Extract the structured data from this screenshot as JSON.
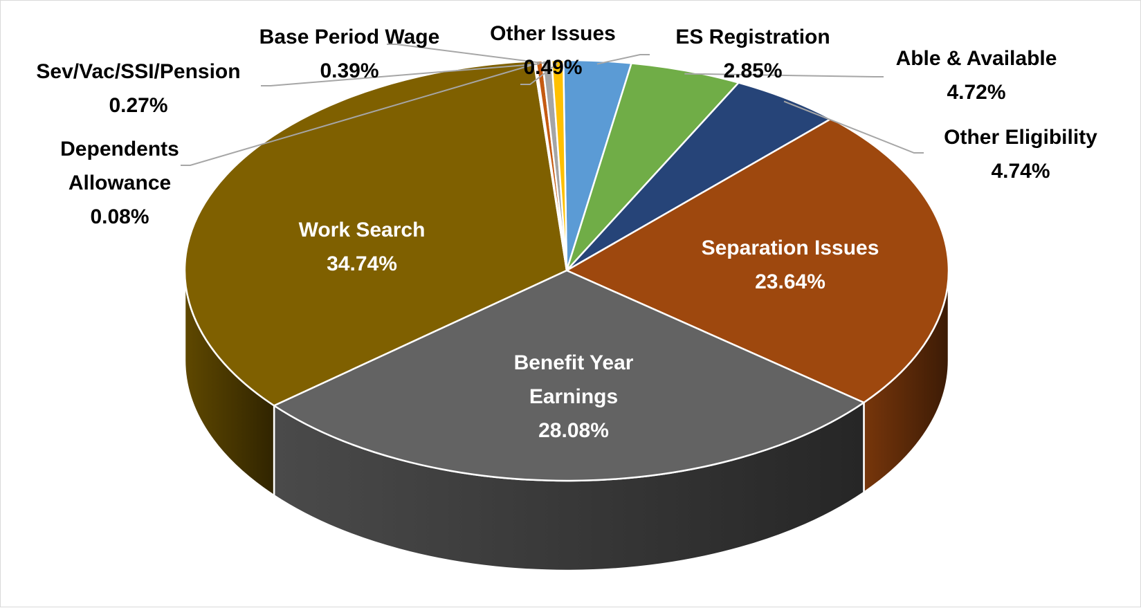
{
  "chart_data": {
    "type": "pie",
    "title": "",
    "slices": [
      {
        "label": [
          "ES Registration"
        ],
        "value": 2.85,
        "value_label": "2.85%",
        "color": "#5b9bd5",
        "text_color": "#000000",
        "label_pos": "outside"
      },
      {
        "label": [
          "Able & Available"
        ],
        "value": 4.72,
        "value_label": "4.72%",
        "color": "#70ad47",
        "text_color": "#000000",
        "label_pos": "outside"
      },
      {
        "label": [
          "Other Eligibility"
        ],
        "value": 4.74,
        "value_label": "4.74%",
        "color": "#264478",
        "text_color": "#000000",
        "label_pos": "outside"
      },
      {
        "label": [
          "Separation Issues"
        ],
        "value": 23.64,
        "value_label": "23.64%",
        "color": "#9e480e",
        "text_color": "#ffffff",
        "label_pos": "inside"
      },
      {
        "label": [
          "Benefit Year",
          "Earnings"
        ],
        "value": 28.08,
        "value_label": "28.08%",
        "color": "#636363",
        "text_color": "#ffffff",
        "label_pos": "inside"
      },
      {
        "label": [
          "Work Search"
        ],
        "value": 34.74,
        "value_label": "34.74%",
        "color": "#7f6000",
        "text_color": "#ffffff",
        "label_pos": "inside"
      },
      {
        "label": [
          "Dependents",
          "Allowance"
        ],
        "value": 0.08,
        "value_label": "0.08%",
        "color": "#ed7d31",
        "text_color": "#000000",
        "label_pos": "outside"
      },
      {
        "label": [
          "Sev/Vac/SSI/Pension"
        ],
        "value": 0.27,
        "value_label": "0.27%",
        "color": "#c55a11",
        "text_color": "#000000",
        "label_pos": "outside"
      },
      {
        "label": [
          "Base Period Wage"
        ],
        "value": 0.39,
        "value_label": "0.39%",
        "color": "#a5a5a5",
        "text_color": "#000000",
        "label_pos": "outside"
      },
      {
        "label": [
          "Other Issues"
        ],
        "value": 0.49,
        "value_label": "0.49%",
        "color": "#ffc000",
        "text_color": "#000000",
        "label_pos": "outside"
      }
    ],
    "legend": "none",
    "style": "3d-pie"
  }
}
